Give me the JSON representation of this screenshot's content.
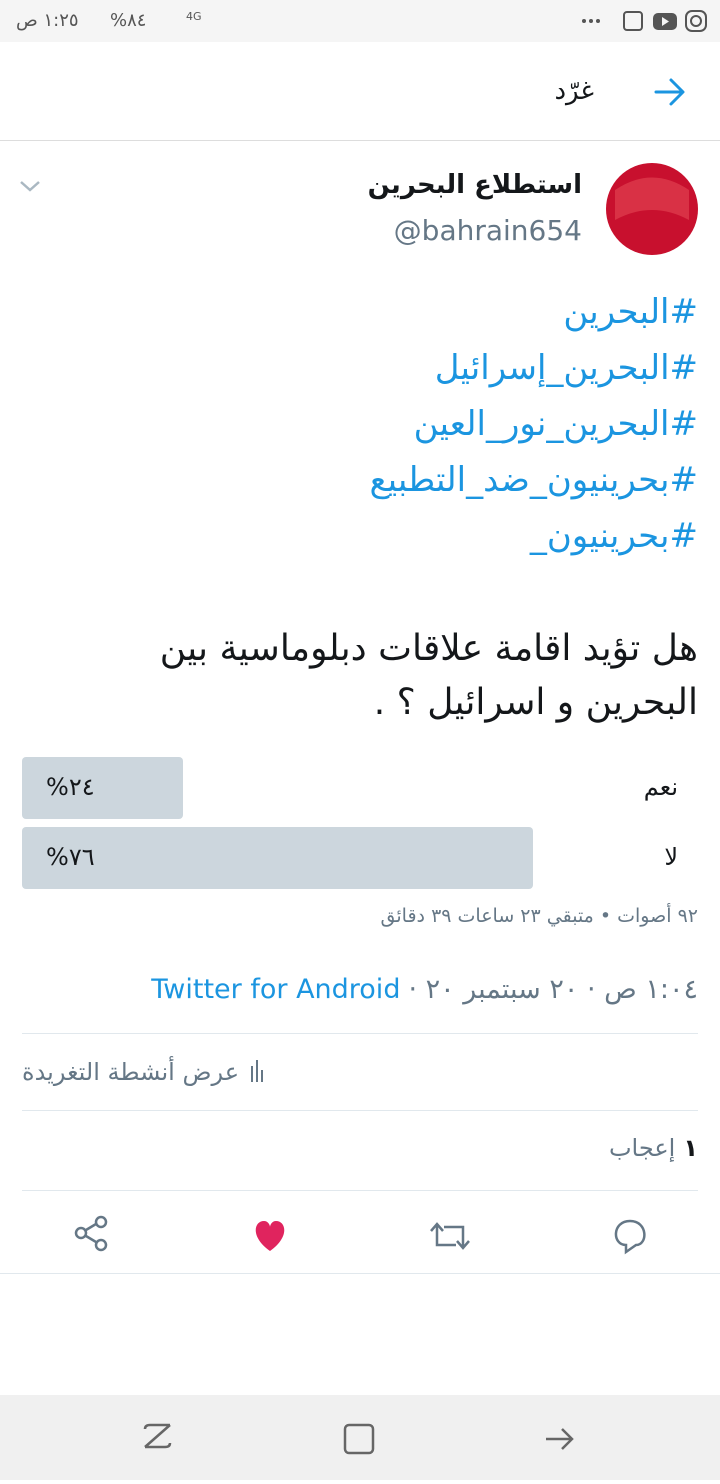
{
  "status_bar": {
    "time": "١:٢٥ ص",
    "battery": "%٨٤",
    "network": "4G"
  },
  "header": {
    "title": "غرّد"
  },
  "tweet": {
    "name": "استطلاع البحرين",
    "handle": "@bahrain654",
    "hashtags": [
      "#البحرين",
      "#البحرين_إسرائيل",
      "#البحرين_نور_العين",
      "#بحرينيون_ضد_التطبيع",
      "#بحرينيون_"
    ],
    "question": [
      "هل تؤيد اقامة علاقات دبلوماسية بين",
      "البحرين و اسرائيل ؟ ."
    ],
    "poll": {
      "options": [
        {
          "label": "نعم",
          "value": 24,
          "value_label": "%٢٤"
        },
        {
          "label": "لا",
          "value": 76,
          "value_label": "%٧٦"
        }
      ],
      "meta": "٩٢ أصوات • متبقي ٢٣ ساعات ٣٩ دقائق"
    },
    "timestamp": "١:٠٤ ص · ٢٠ سبتمبر ٢٠ ·",
    "source": "Twitter for Android",
    "activity": "عرض أنشطة التغريدة",
    "likes_count": "١",
    "likes_label": "إعجاب"
  }
}
